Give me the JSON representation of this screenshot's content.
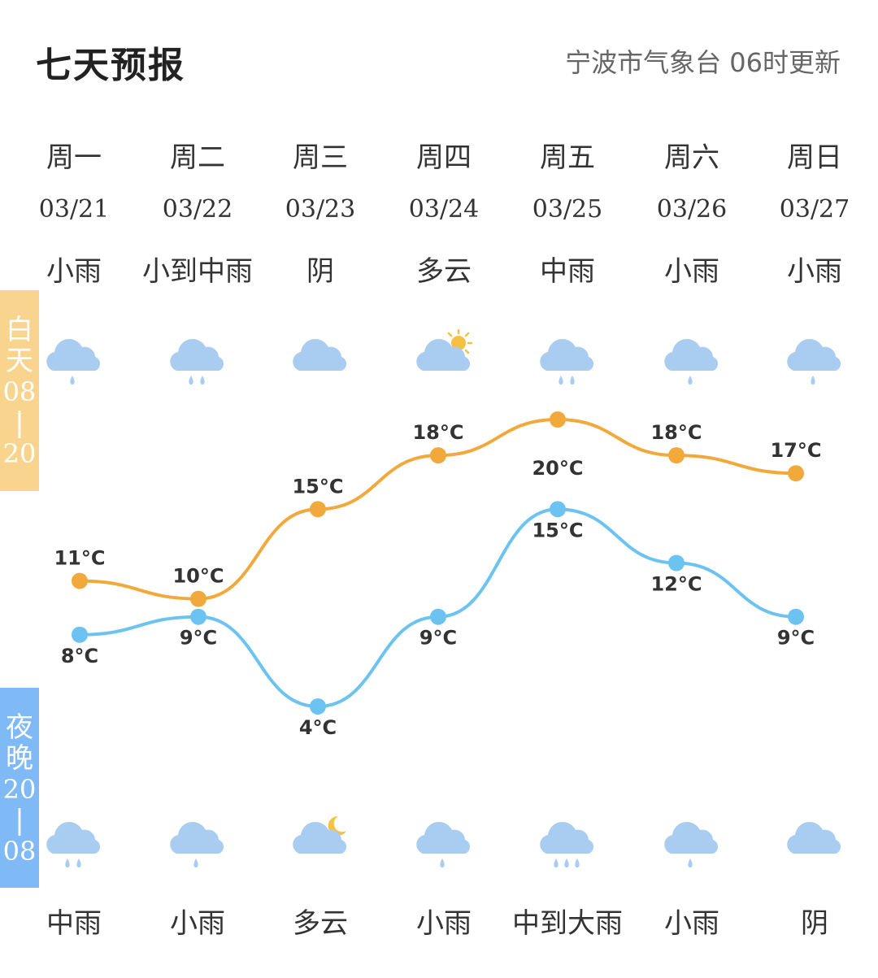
{
  "header": {
    "title": "七天预报",
    "source": "宁波市气象台 06时更新"
  },
  "badges": {
    "day": [
      "白",
      "天",
      "08",
      "|",
      "20"
    ],
    "night": [
      "夜",
      "晚",
      "20",
      "|",
      "08"
    ]
  },
  "days": [
    {
      "name": "周一",
      "date": "03/21",
      "day_cond": "小雨",
      "day_icon": "light-rain-icon",
      "night_cond": "中雨",
      "night_icon": "moderate-rain-icon"
    },
    {
      "name": "周二",
      "date": "03/22",
      "day_cond": "小到中雨",
      "day_icon": "moderate-rain-icon",
      "night_cond": "小雨",
      "night_icon": "light-rain-icon"
    },
    {
      "name": "周三",
      "date": "03/23",
      "day_cond": "阴",
      "day_icon": "overcast-icon",
      "night_cond": "多云",
      "night_icon": "partly-cloudy-night-icon"
    },
    {
      "name": "周四",
      "date": "03/24",
      "day_cond": "多云",
      "day_icon": "partly-cloudy-day-icon",
      "night_cond": "小雨",
      "night_icon": "light-rain-icon"
    },
    {
      "name": "周五",
      "date": "03/25",
      "day_cond": "中雨",
      "day_icon": "moderate-rain-icon",
      "night_cond": "中到大雨",
      "night_icon": "heavy-rain-icon"
    },
    {
      "name": "周六",
      "date": "03/26",
      "day_cond": "小雨",
      "day_icon": "light-rain-icon",
      "night_cond": "小雨",
      "night_icon": "light-rain-icon"
    },
    {
      "name": "周日",
      "date": "03/27",
      "day_cond": "小雨",
      "day_icon": "light-rain-icon",
      "night_cond": "阴",
      "night_icon": "overcast-icon"
    }
  ],
  "colors": {
    "high": "#f2a93b",
    "low": "#6cc3f2",
    "cloud": "#a9cdf0",
    "sun": "#f5c043",
    "badge_day": "#f9d48f",
    "badge_night": "#7fb9f6"
  },
  "chart_data": {
    "type": "line",
    "categories": [
      "03/21",
      "03/22",
      "03/23",
      "03/24",
      "03/25",
      "03/26",
      "03/27"
    ],
    "unit": "°C",
    "series": [
      {
        "values": [
          11,
          10,
          15,
          18,
          20,
          18,
          17
        ],
        "labels": [
          "11°C",
          "10°C",
          "15°C",
          "18°C",
          "20°C",
          "18°C",
          "17°C"
        ]
      },
      {
        "values": [
          8,
          9,
          4,
          9,
          15,
          12,
          9
        ],
        "labels": [
          "8°C",
          "9°C",
          "4°C",
          "9°C",
          "15°C",
          "12°C",
          "9°C"
        ]
      }
    ],
    "grid": false
  }
}
